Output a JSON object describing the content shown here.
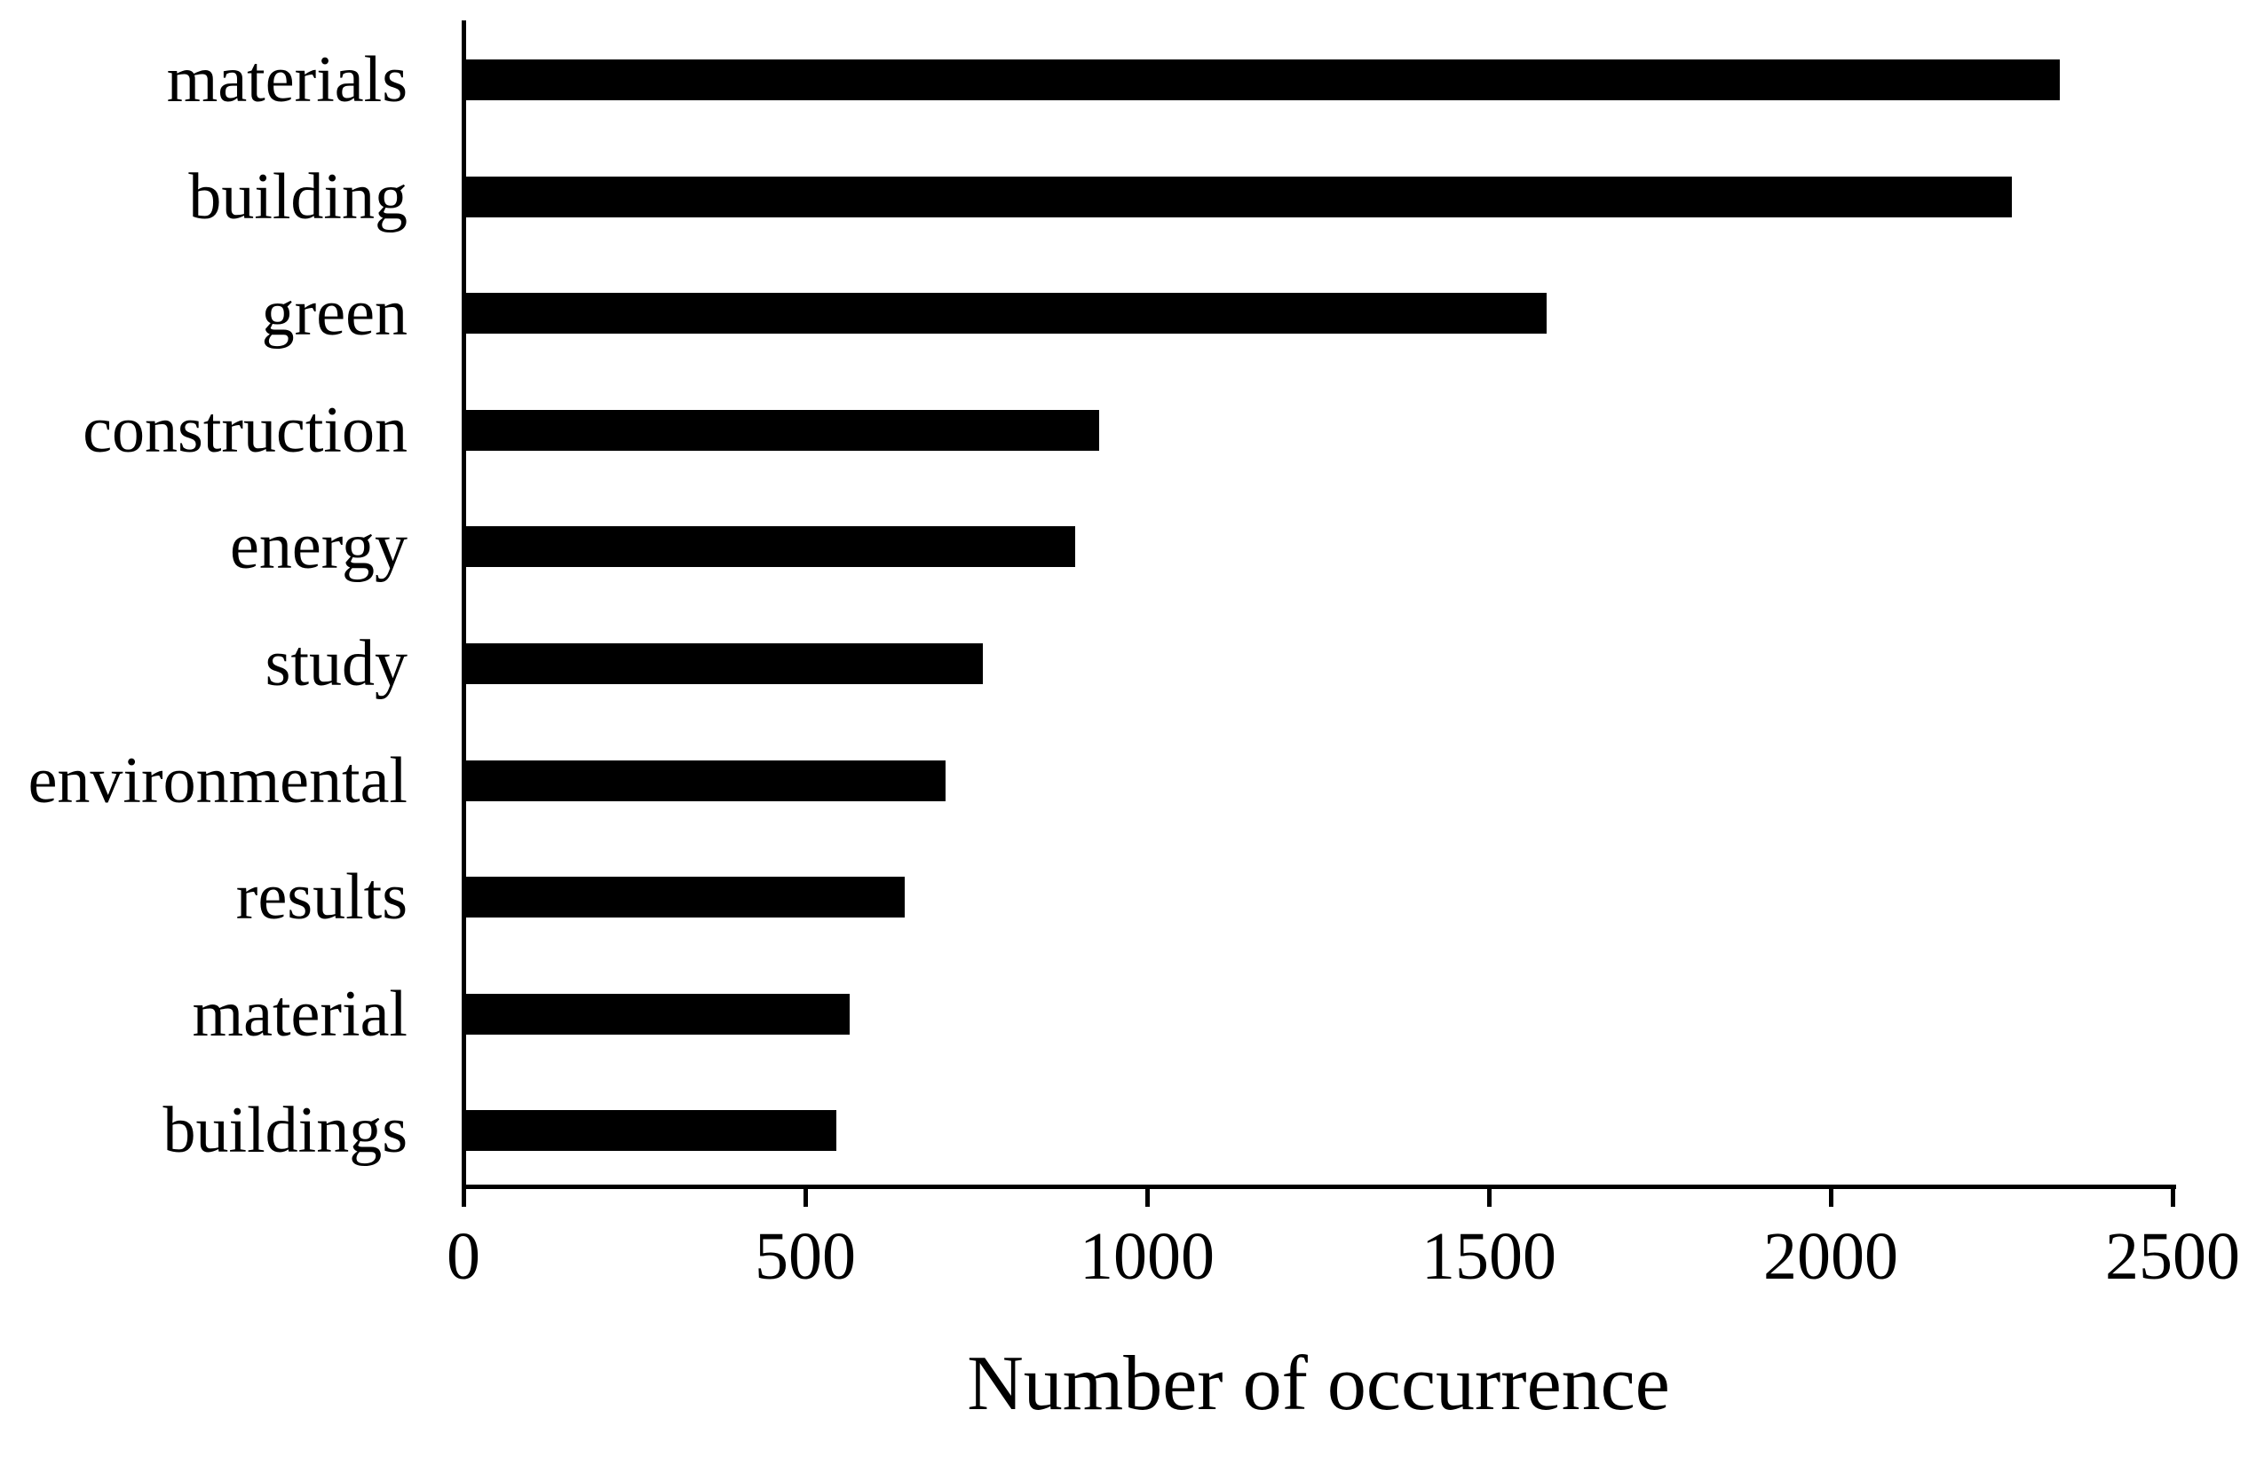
{
  "chart_data": {
    "type": "bar",
    "orientation": "horizontal",
    "title": "",
    "xlabel": "Number of occurrence",
    "ylabel": "",
    "categories": [
      "materials",
      "building",
      "green",
      "construction",
      "energy",
      "study",
      "environmental",
      "results",
      "material",
      "buildings"
    ],
    "values": [
      2335,
      2265,
      1585,
      930,
      895,
      760,
      705,
      645,
      565,
      545
    ],
    "xlim": [
      0,
      2500
    ],
    "xticks": [
      0,
      500,
      1000,
      1500,
      2000,
      2500
    ],
    "xtick_labels": [
      "0",
      "500",
      "1000",
      "1500",
      "2000",
      "2500"
    ],
    "grid": false,
    "legend": "none",
    "bar_color": "#000000",
    "axis_color": "#000000",
    "text_color": "#000000",
    "background_color": "#ffffff"
  }
}
